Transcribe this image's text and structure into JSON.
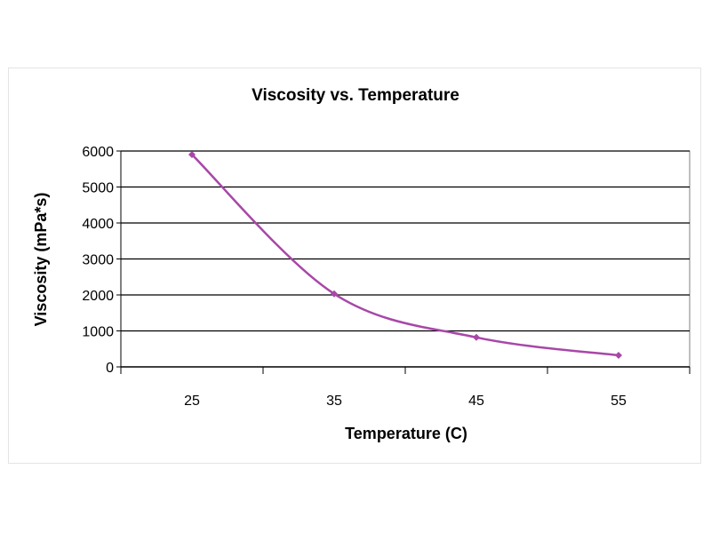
{
  "chart_data": {
    "type": "line",
    "title": "Viscosity vs. Temperature",
    "xlabel": "Temperature (C)",
    "ylabel": "Viscosity (mPa*s)",
    "categories": [
      "25",
      "35",
      "45",
      "55"
    ],
    "series": [
      {
        "values": [
          5900,
          2030,
          820,
          320
        ],
        "color": "#a847a8"
      }
    ],
    "ylim": [
      0,
      6000
    ],
    "yticks": [
      0,
      1000,
      2000,
      3000,
      4000,
      5000,
      6000
    ],
    "grid": true,
    "legend": "none",
    "colors": {
      "plot_background": "#ffffff",
      "gridline": "#000000"
    }
  }
}
